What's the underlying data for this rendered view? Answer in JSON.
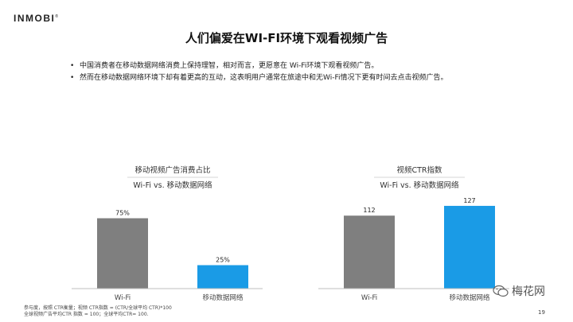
{
  "header": {
    "logo_text": "INMOBI",
    "title": "人们偏爱在WI-FI环境下观看视频广告"
  },
  "bullets": [
    "中国消费者在移动数据网络消费上保持理智，相对而言，更愿意在 Wi-Fi环境下观看视频广告。",
    "然而在移动数据网络环境下却有着更高的互动，这表明用户通常在旅途中和无Wi-Fi情况下更有时间去点击视频广告。"
  ],
  "chart_data": [
    {
      "type": "bar",
      "title": "移动视频广告消费占比",
      "subtitle": "Wi-Fi vs. 移动数据网络",
      "categories": [
        "Wi-Fi",
        "移动数据网络"
      ],
      "values": [
        75,
        25
      ],
      "value_labels": [
        "75%",
        "25%"
      ],
      "colors": [
        "#7f7f7f",
        "#1a9be6"
      ],
      "ylim": [
        0,
        100
      ],
      "grid": false
    },
    {
      "type": "bar",
      "title": "视频CTR指数",
      "subtitle": "Wi-Fi vs. 移动数据网络",
      "categories": [
        "Wi-Fi",
        "移动数据网络"
      ],
      "values": [
        112,
        127
      ],
      "value_labels": [
        "112",
        "127"
      ],
      "colors": [
        "#7f7f7f",
        "#1a9be6"
      ],
      "ylim": [
        0,
        144
      ],
      "grid": false
    }
  ],
  "footnote": {
    "line1": "参与度，按照 CTR衡量；视频 CTR指数 = (CTR/全球平均 CTR)*100",
    "line2": "全球视频广告平均CTR 指数 = 100；全球平均CTR= 100."
  },
  "watermark": {
    "text": "梅花网",
    "icon": "wechat-icon"
  },
  "page_number": "19"
}
